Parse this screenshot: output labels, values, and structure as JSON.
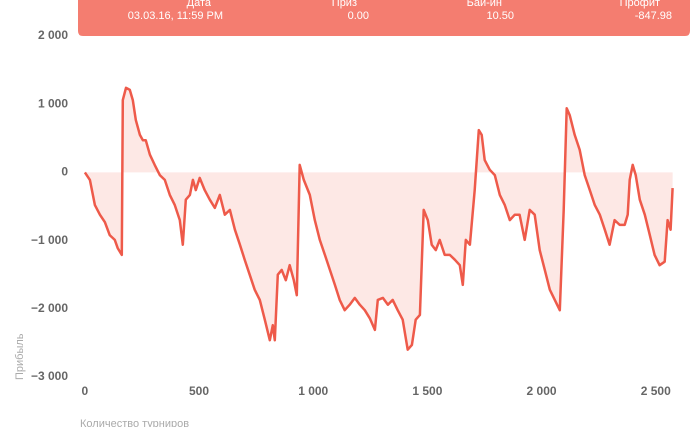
{
  "chart_data": {
    "type": "area-line",
    "y_label": "Прибыль",
    "x_label": "Количество турниров",
    "color": "#ee5a4a",
    "fill": "#fde8e5",
    "grid": false,
    "xlim": [
      -30,
      2650
    ],
    "ylim": [
      -3000,
      2000
    ],
    "xticks": [
      0,
      500,
      {
        "value": 1000,
        "label": "1 000"
      },
      {
        "value": 1500,
        "label": "1 500"
      },
      {
        "value": 2000,
        "label": "2 000"
      },
      {
        "value": 2500,
        "label": "2 500"
      }
    ],
    "yticks": [
      {
        "value": -3000,
        "label": "−3 000"
      },
      {
        "value": -2000,
        "label": "−2 000"
      },
      {
        "value": -1000,
        "label": "−1 000"
      },
      0,
      {
        "value": 1000,
        "label": "1 000"
      },
      {
        "value": 2000,
        "label": "2 000"
      }
    ],
    "x": [
      0,
      22,
      44,
      66,
      88,
      109,
      131,
      144,
      162,
      166,
      180,
      197,
      210,
      223,
      241,
      254,
      267,
      285,
      306,
      328,
      350,
      372,
      394,
      416,
      429,
      442,
      460,
      473,
      486,
      503,
      525,
      547,
      569,
      591,
      613,
      635,
      657,
      679,
      700,
      722,
      744,
      766,
      788,
      810,
      823,
      832,
      845,
      862,
      880,
      897,
      915,
      928,
      941,
      959,
      985,
      1007,
      1029,
      1051,
      1073,
      1095,
      1116,
      1138,
      1160,
      1182,
      1204,
      1226,
      1248,
      1270,
      1283,
      1305,
      1327,
      1348,
      1370,
      1392,
      1414,
      1432,
      1449,
      1467,
      1484,
      1502,
      1519,
      1537,
      1554,
      1576,
      1598,
      1620,
      1642,
      1655,
      1668,
      1686,
      1707,
      1725,
      1738,
      1751,
      1773,
      1795,
      1817,
      1839,
      1861,
      1883,
      1904,
      1926,
      1948,
      1970,
      1992,
      2014,
      2036,
      2058,
      2080,
      2097,
      2110,
      2123,
      2145,
      2167,
      2189,
      2211,
      2233,
      2255,
      2277,
      2298,
      2320,
      2342,
      2364,
      2377,
      2386,
      2399,
      2412,
      2430,
      2452,
      2474,
      2495,
      2517,
      2539,
      2552,
      2565,
      2574
    ],
    "values": [
      0,
      -110,
      -480,
      -620,
      -730,
      -920,
      -990,
      -1110,
      -1210,
      1060,
      1240,
      1210,
      1060,
      770,
      550,
      470,
      470,
      260,
      110,
      -40,
      -110,
      -330,
      -480,
      -700,
      -1060,
      -400,
      -330,
      -110,
      -260,
      -80,
      -260,
      -400,
      -520,
      -330,
      -620,
      -550,
      -840,
      -1060,
      -1280,
      -1500,
      -1720,
      -1870,
      -2160,
      -2460,
      -2240,
      -2460,
      -1500,
      -1430,
      -1580,
      -1360,
      -1580,
      -1800,
      110,
      -110,
      -330,
      -700,
      -990,
      -1210,
      -1430,
      -1650,
      -1870,
      -2020,
      -1940,
      -1840,
      -1940,
      -2020,
      -2140,
      -2310,
      -1870,
      -1840,
      -1940,
      -1870,
      -2020,
      -2160,
      -2600,
      -2530,
      -2160,
      -2090,
      -550,
      -700,
      -1060,
      -1140,
      -990,
      -1210,
      -1210,
      -1280,
      -1360,
      -1650,
      -990,
      -1060,
      -260,
      620,
      550,
      180,
      40,
      -40,
      -330,
      -480,
      -700,
      -620,
      -620,
      -990,
      -550,
      -620,
      -1140,
      -1430,
      -1720,
      -1870,
      -2020,
      -550,
      940,
      840,
      550,
      330,
      -40,
      -260,
      -480,
      -620,
      -840,
      -1060,
      -700,
      -770,
      -770,
      -620,
      -110,
      110,
      -40,
      -400,
      -620,
      -920,
      -1210,
      -1360,
      -1310,
      -700,
      -840,
      -230
    ]
  },
  "tooltip": {
    "columns": [
      {
        "label": "Дата",
        "value": "03.03.16, 11:59 PM"
      },
      {
        "label": "Приз",
        "value": "0.00"
      },
      {
        "label": "Бай-ин",
        "value": "10.50"
      },
      {
        "label": "Профит",
        "value": "-847.98"
      }
    ]
  }
}
